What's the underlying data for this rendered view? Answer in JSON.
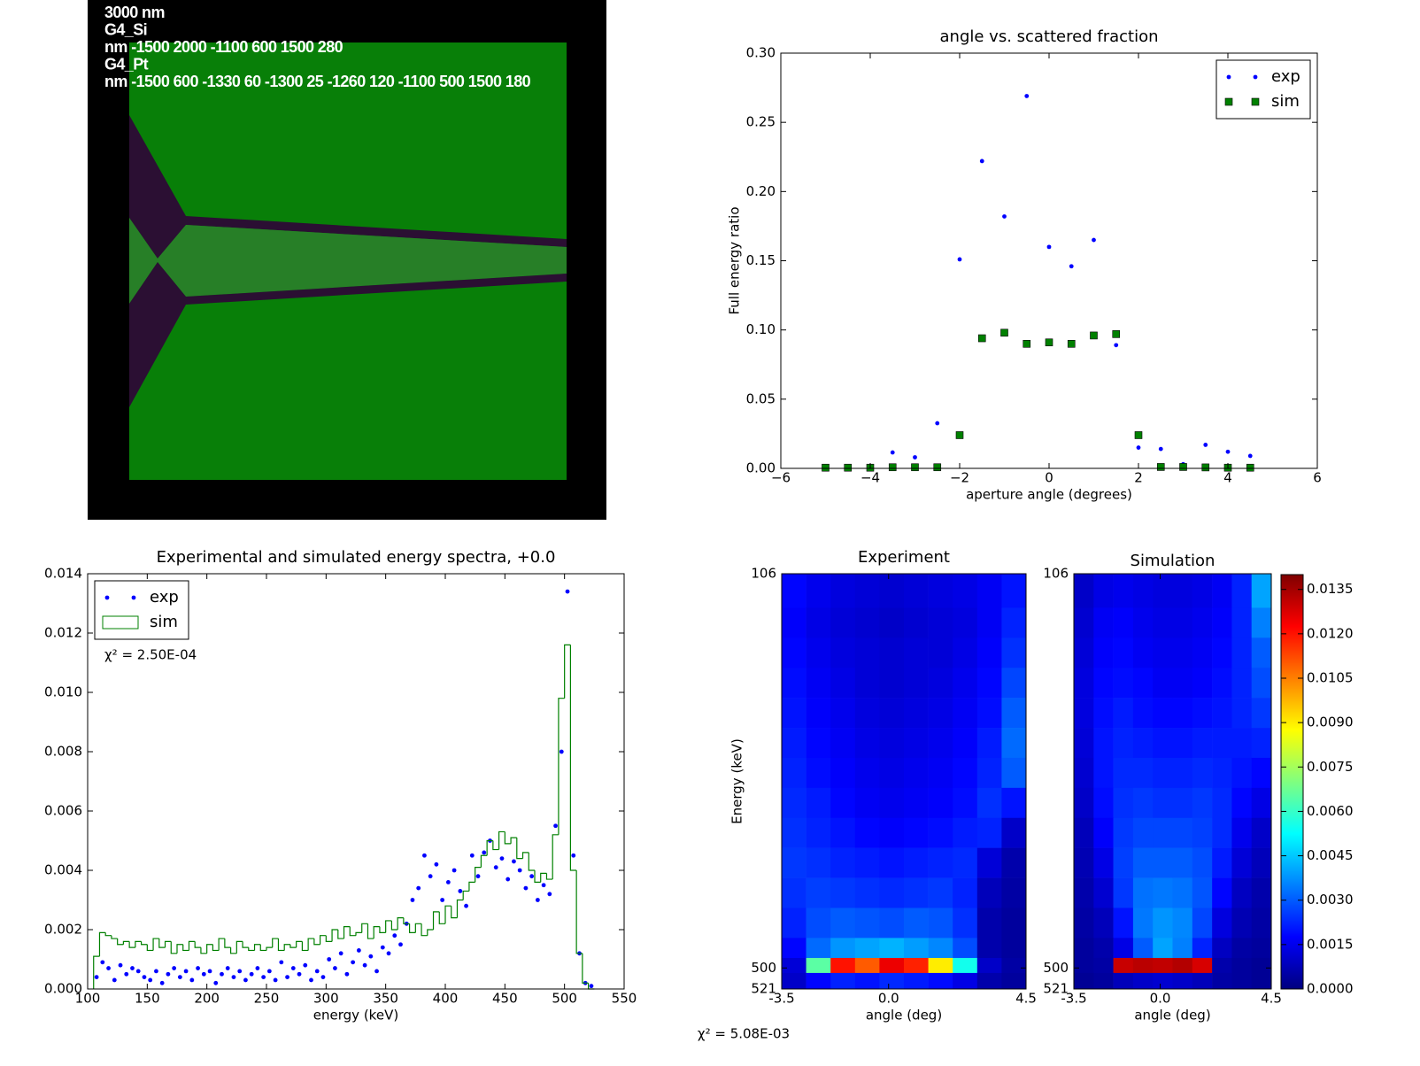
{
  "chart_data": [
    {
      "type": "image",
      "annotations": [
        "3000 nm",
        "G4_Si",
        "nm -1500 2000 -1100 600 1500 280",
        "G4_Pt",
        "nm -1500 600 -1330 60 -1300 25 -1260 120 -1100 500 1500 180"
      ]
    },
    {
      "type": "scatter",
      "title": "angle vs. scattered fraction",
      "xlabel": "aperture angle (degrees)",
      "ylabel": "Full energy ratio",
      "x": [
        -5,
        -4.5,
        -4,
        -3.5,
        -3,
        -2.5,
        -2,
        -1.5,
        -1,
        -0.5,
        0,
        0.5,
        1,
        1.5,
        2,
        2.5,
        3,
        3.5,
        4,
        4.5
      ],
      "series": [
        {
          "name": "exp",
          "color": "#0000ff",
          "marker": "dot",
          "values": [
            0,
            0,
            0,
            0.0115,
            0.008,
            0.0326,
            0.151,
            0.222,
            0.182,
            0.269,
            0.16,
            0.146,
            0.165,
            0.089,
            0.015,
            0.014,
            0.003,
            0.017,
            0.012,
            0.009
          ]
        },
        {
          "name": "sim",
          "color": "#008000",
          "marker": "square",
          "values": [
            0.0005,
            0.0005,
            0.0005,
            0.0008,
            0.0008,
            0.0008,
            0.024,
            0.094,
            0.098,
            0.09,
            0.091,
            0.09,
            0.096,
            0.097,
            0.024,
            0.001,
            0.001,
            0.0007,
            0.0005,
            0.0005
          ]
        }
      ],
      "xlim": [
        -6,
        6
      ],
      "xticks": [
        {
          "value": -6,
          "label": "−6"
        },
        {
          "value": -4,
          "label": "−4"
        },
        {
          "value": -2,
          "label": "−2"
        },
        0,
        2,
        4,
        6
      ],
      "ylim": [
        0,
        0.3
      ],
      "yticks": [
        {
          "value": 0,
          "label": "0.00"
        },
        0.05,
        {
          "value": 0.1,
          "label": "0.10"
        },
        0.15,
        {
          "value": 0.2,
          "label": "0.20"
        },
        0.25,
        {
          "value": 0.3,
          "label": "0.30"
        }
      ],
      "legend": "upper right"
    },
    {
      "type": "histogram",
      "title": "Experimental and simulated energy spectra, +0.0",
      "xlabel": "energy (keV)",
      "annotation": "χ² = 2.50E-04",
      "series": [
        {
          "name": "exp",
          "color": "#0000ff",
          "marker": "dot",
          "x": [
            107.5,
            112.5,
            117.5,
            122.5,
            127.5,
            132.5,
            137.5,
            142.5,
            147.5,
            152.5,
            157.5,
            162.5,
            167.5,
            172.5,
            177.5,
            182.5,
            187.5,
            192.5,
            197.5,
            202.5,
            207.5,
            212.5,
            217.5,
            222.5,
            227.5,
            232.5,
            237.5,
            242.5,
            247.5,
            252.5,
            257.5,
            262.5,
            267.5,
            272.5,
            277.5,
            282.5,
            287.5,
            292.5,
            297.5,
            302.5,
            307.5,
            312.5,
            317.5,
            322.5,
            327.5,
            332.5,
            337.5,
            342.5,
            347.5,
            352.5,
            357.5,
            362.5,
            367.5,
            372.5,
            377.5,
            382.5,
            387.5,
            392.5,
            397.5,
            402.5,
            407.5,
            412.5,
            417.5,
            422.5,
            427.5,
            432.5,
            437.5,
            442.5,
            447.5,
            452.5,
            457.5,
            462.5,
            467.5,
            472.5,
            477.5,
            482.5,
            487.5,
            492.5,
            497.5,
            502.5,
            507.5,
            512.5,
            517.5,
            522.5
          ],
          "values": [
            0.0004,
            0.0009,
            0.0007,
            0.0003,
            0.0008,
            0.0005,
            0.0007,
            0.0006,
            0.0004,
            0.0003,
            0.0006,
            0.0002,
            0.0005,
            0.0007,
            0.0004,
            0.0006,
            0.0003,
            0.0007,
            0.0005,
            0.0006,
            0.0002,
            0.0005,
            0.0007,
            0.0004,
            0.0006,
            0.0003,
            0.0005,
            0.0007,
            0.0004,
            0.0006,
            0.0003,
            0.0009,
            0.0004,
            0.0007,
            0.0005,
            0.0008,
            0.0003,
            0.0006,
            0.0004,
            0.001,
            0.0007,
            0.0012,
            0.0005,
            0.0009,
            0.0013,
            0.0008,
            0.0011,
            0.0006,
            0.0014,
            0.0012,
            0.0018,
            0.0015,
            0.0022,
            0.003,
            0.0034,
            0.0045,
            0.0038,
            0.0042,
            0.003,
            0.0036,
            0.004,
            0.0033,
            0.0028,
            0.0045,
            0.0038,
            0.0046,
            0.005,
            0.0041,
            0.0044,
            0.0037,
            0.0043,
            0.004,
            0.0034,
            0.0038,
            0.003,
            0.0035,
            0.0032,
            0.0055,
            0.008,
            0.0134,
            0.0045,
            0.0012,
            0.0002,
            0.0001
          ]
        },
        {
          "name": "sim",
          "color": "#008000",
          "style": "step",
          "bins": [
            105,
            110,
            115,
            120,
            125,
            130,
            135,
            140,
            145,
            150,
            155,
            160,
            165,
            170,
            175,
            180,
            185,
            190,
            195,
            200,
            205,
            210,
            215,
            220,
            225,
            230,
            235,
            240,
            245,
            250,
            255,
            260,
            265,
            270,
            275,
            280,
            285,
            290,
            295,
            300,
            305,
            310,
            315,
            320,
            325,
            330,
            335,
            340,
            345,
            350,
            355,
            360,
            365,
            370,
            375,
            380,
            385,
            390,
            395,
            400,
            405,
            410,
            415,
            420,
            425,
            430,
            435,
            440,
            445,
            450,
            455,
            460,
            465,
            470,
            475,
            480,
            485,
            490,
            495,
            500,
            505,
            510,
            515,
            520,
            525
          ],
          "values": [
            0.0011,
            0.0019,
            0.0018,
            0.0017,
            0.0015,
            0.0016,
            0.0014,
            0.0016,
            0.0015,
            0.0013,
            0.0017,
            0.0014,
            0.0016,
            0.0012,
            0.0015,
            0.0013,
            0.0016,
            0.0014,
            0.0012,
            0.0015,
            0.0013,
            0.0017,
            0.0014,
            0.0012,
            0.0016,
            0.0014,
            0.0013,
            0.0015,
            0.0013,
            0.0014,
            0.0017,
            0.0013,
            0.0015,
            0.0014,
            0.0016,
            0.0013,
            0.0017,
            0.0015,
            0.0018,
            0.0016,
            0.002,
            0.0017,
            0.0021,
            0.0018,
            0.0019,
            0.0022,
            0.0017,
            0.0021,
            0.0019,
            0.0023,
            0.002,
            0.0024,
            0.0022,
            0.0019,
            0.0022,
            0.0018,
            0.002,
            0.0026,
            0.0022,
            0.0028,
            0.0024,
            0.003,
            0.0033,
            0.0036,
            0.0041,
            0.0045,
            0.005,
            0.0047,
            0.0053,
            0.0049,
            0.0051,
            0.0044,
            0.0046,
            0.004,
            0.0036,
            0.0039,
            0.0037,
            0.0052,
            0.0098,
            0.0116,
            0.004,
            0.0012,
            0.0002,
            0
          ]
        }
      ],
      "xlim": [
        100,
        550
      ],
      "xticks": [
        100,
        150,
        200,
        250,
        300,
        350,
        400,
        450,
        500,
        550
      ],
      "ylim": [
        0,
        0.014
      ],
      "yticks": [
        {
          "value": 0,
          "label": "0.000"
        },
        0.002,
        0.004,
        0.006,
        0.008,
        {
          "value": 0.01,
          "label": "0.010"
        },
        0.012,
        0.014
      ],
      "legend": "upper left"
    },
    {
      "type": "heatmap",
      "title": "Experiment",
      "xlabel": "angle (deg)",
      "ylabel": "Energy (keV)",
      "colormap": "jet",
      "clim": [
        0,
        0.014
      ],
      "x_edges": [
        -3.5,
        -2.7,
        -1.9,
        -1.1,
        -0.3,
        0.5,
        1.3,
        2.1,
        2.9,
        3.7,
        4.5
      ],
      "y_edges": [
        106,
        140,
        170,
        200,
        230,
        260,
        290,
        320,
        350,
        380,
        410,
        440,
        470,
        490,
        505,
        521
      ],
      "values": [
        [
          0.0018,
          0.0015,
          0.0013,
          0.0012,
          0.0011,
          0.0012,
          0.0013,
          0.0014,
          0.0016,
          0.002
        ],
        [
          0.0017,
          0.0014,
          0.0012,
          0.0011,
          0.001,
          0.0011,
          0.0012,
          0.0013,
          0.0016,
          0.0022
        ],
        [
          0.0018,
          0.0015,
          0.0013,
          0.0012,
          0.0011,
          0.0012,
          0.0012,
          0.0014,
          0.0017,
          0.0024
        ],
        [
          0.0019,
          0.0016,
          0.0014,
          0.0012,
          0.0011,
          0.0012,
          0.0013,
          0.0015,
          0.0018,
          0.0027
        ],
        [
          0.002,
          0.0017,
          0.0015,
          0.0013,
          0.0012,
          0.0013,
          0.0014,
          0.0016,
          0.0019,
          0.003
        ],
        [
          0.0021,
          0.0018,
          0.0016,
          0.0014,
          0.0013,
          0.0014,
          0.0015,
          0.0017,
          0.0021,
          0.0032
        ],
        [
          0.0022,
          0.0019,
          0.0017,
          0.0015,
          0.0014,
          0.0015,
          0.0016,
          0.0018,
          0.0022,
          0.003
        ],
        [
          0.0023,
          0.0021,
          0.0018,
          0.0016,
          0.0015,
          0.0016,
          0.0017,
          0.0019,
          0.0024,
          0.002
        ],
        [
          0.0024,
          0.0022,
          0.002,
          0.0018,
          0.0017,
          0.0018,
          0.0019,
          0.0021,
          0.0022,
          0.001
        ],
        [
          0.0025,
          0.0024,
          0.0022,
          0.0021,
          0.002,
          0.0021,
          0.0022,
          0.0023,
          0.0012,
          0.0006
        ],
        [
          0.0024,
          0.0026,
          0.0025,
          0.0024,
          0.0023,
          0.0024,
          0.0025,
          0.0022,
          0.0008,
          0.0005
        ],
        [
          0.0022,
          0.0028,
          0.003,
          0.0029,
          0.0028,
          0.003,
          0.0029,
          0.0024,
          0.0006,
          0.0004
        ],
        [
          0.0018,
          0.0032,
          0.0038,
          0.004,
          0.0042,
          0.0039,
          0.0036,
          0.0028,
          0.0006,
          0.0004
        ],
        [
          0.0012,
          0.0065,
          0.012,
          0.011,
          0.0125,
          0.0118,
          0.009,
          0.0055,
          0.001,
          0.0005
        ],
        [
          0.001,
          0.0018,
          0.0022,
          0.002,
          0.0023,
          0.0021,
          0.0019,
          0.0014,
          0.0006,
          0.0004
        ]
      ],
      "xlim": [
        -3.5,
        4.5
      ],
      "xticks": [
        -3.5,
        {
          "value": 0,
          "label": "0.0"
        },
        4.5
      ],
      "ylim": [
        521,
        106
      ],
      "yticks": [
        106,
        500,
        521
      ]
    },
    {
      "type": "heatmap",
      "title": "Simulation",
      "xlabel": "angle (deg)",
      "colormap": "jet",
      "clim": [
        0,
        0.014
      ],
      "x_edges": [
        -3.5,
        -2.7,
        -1.9,
        -1.1,
        -0.3,
        0.5,
        1.3,
        2.1,
        2.9,
        3.7,
        4.5
      ],
      "y_edges": [
        106,
        140,
        170,
        200,
        230,
        260,
        290,
        320,
        350,
        380,
        410,
        440,
        470,
        490,
        505,
        521
      ],
      "values": [
        [
          0.001,
          0.0014,
          0.0015,
          0.0014,
          0.0013,
          0.0013,
          0.0014,
          0.0016,
          0.0022,
          0.004
        ],
        [
          0.0011,
          0.0016,
          0.0017,
          0.0015,
          0.0014,
          0.0014,
          0.0015,
          0.0017,
          0.0022,
          0.0035
        ],
        [
          0.0012,
          0.0017,
          0.0018,
          0.0016,
          0.0015,
          0.0015,
          0.0016,
          0.0018,
          0.0022,
          0.003
        ],
        [
          0.0013,
          0.0018,
          0.0019,
          0.0018,
          0.0016,
          0.0016,
          0.0017,
          0.0019,
          0.0022,
          0.0028
        ],
        [
          0.0013,
          0.0019,
          0.0021,
          0.0019,
          0.0018,
          0.0018,
          0.0019,
          0.002,
          0.0022,
          0.0025
        ],
        [
          0.0012,
          0.002,
          0.0022,
          0.0021,
          0.002,
          0.002,
          0.0021,
          0.0021,
          0.0021,
          0.0022
        ],
        [
          0.0011,
          0.002,
          0.0023,
          0.0023,
          0.0022,
          0.0022,
          0.0023,
          0.0022,
          0.002,
          0.0018
        ],
        [
          0.001,
          0.0019,
          0.0024,
          0.0025,
          0.0024,
          0.0024,
          0.0025,
          0.0023,
          0.0018,
          0.0014
        ],
        [
          0.0008,
          0.0017,
          0.0025,
          0.0027,
          0.0027,
          0.0027,
          0.0026,
          0.0023,
          0.0015,
          0.001
        ],
        [
          0.0007,
          0.0014,
          0.0026,
          0.003,
          0.003,
          0.003,
          0.0028,
          0.0021,
          0.0012,
          0.0008
        ],
        [
          0.0006,
          0.0011,
          0.0025,
          0.0033,
          0.0034,
          0.0033,
          0.0029,
          0.0018,
          0.0009,
          0.0006
        ],
        [
          0.0005,
          0.0008,
          0.002,
          0.0034,
          0.0038,
          0.0036,
          0.0027,
          0.0013,
          0.0007,
          0.0005
        ],
        [
          0.0004,
          0.0006,
          0.0014,
          0.003,
          0.004,
          0.0035,
          0.0022,
          0.0009,
          0.0005,
          0.0004
        ],
        [
          0.0004,
          0.0005,
          0.013,
          0.0132,
          0.0131,
          0.0133,
          0.0128,
          0.0006,
          0.0004,
          0.0003
        ],
        [
          0.0003,
          0.0004,
          0.0008,
          0.001,
          0.0011,
          0.001,
          0.0008,
          0.0005,
          0.0004,
          0.0003
        ]
      ],
      "xlim": [
        -3.5,
        4.5
      ],
      "xticks": [
        -3.5,
        {
          "value": 0,
          "label": "0.0"
        },
        4.5
      ],
      "ylim": [
        521,
        106
      ],
      "yticks": [
        106,
        500,
        521
      ]
    },
    {
      "type": "colorbar",
      "colormap": "jet",
      "clim": [
        0,
        0.014
      ],
      "ticks": [
        {
          "value": 0,
          "label": "0.0000"
        },
        0.0015,
        {
          "value": 0.003,
          "label": "0.0030"
        },
        0.0045,
        {
          "value": 0.006,
          "label": "0.0060"
        },
        0.0075,
        {
          "value": 0.009,
          "label": "0.0090"
        },
        0.0105,
        {
          "value": 0.012,
          "label": "0.0120"
        },
        0.0135
      ]
    }
  ],
  "figure_annotation": "χ² = 5.08E-03"
}
